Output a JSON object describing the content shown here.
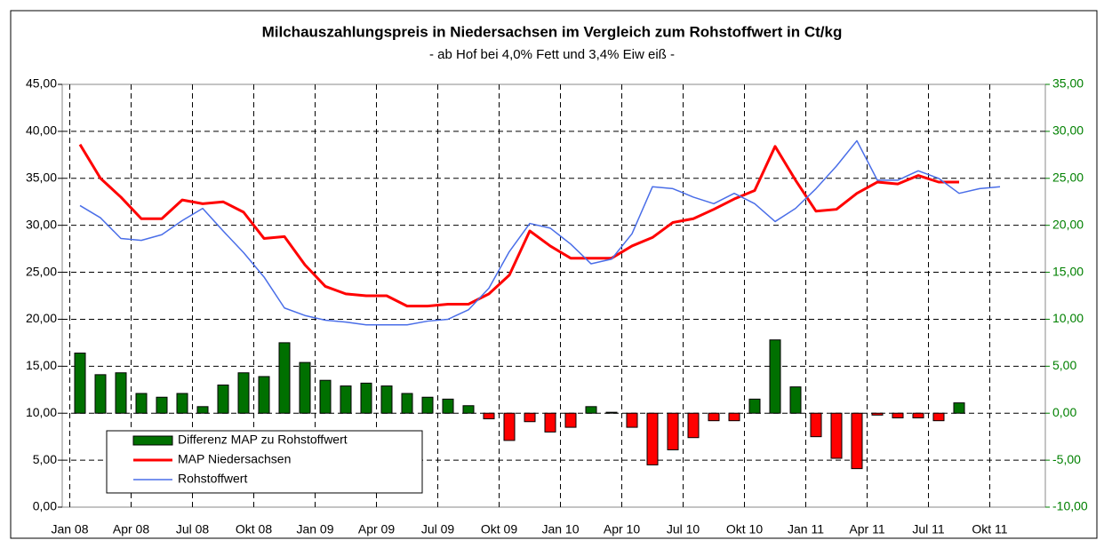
{
  "chart_data": {
    "type": "bar-line",
    "title": "Milchauszahlungspreis in Niedersachsen im Vergleich zum Rohstoffwert in Ct/kg",
    "subtitle": "- ab Hof bei 4,0% Fett und 3,4% Eiw eiß -",
    "categories": [
      "Jan 08",
      null,
      null,
      "Apr 08",
      null,
      null,
      "Jul 08",
      null,
      null,
      "Okt 08",
      null,
      null,
      "Jan 09",
      null,
      null,
      "Apr 09",
      null,
      null,
      "Jul 09",
      null,
      null,
      "Okt 09",
      null,
      null,
      "Jan 10",
      null,
      null,
      "Apr 10",
      null,
      null,
      "Jul 10",
      null,
      null,
      "Okt 10",
      null,
      null,
      "Jan 11",
      null,
      null,
      "Apr 11",
      null,
      null,
      "Jul 11",
      null,
      null,
      "Okt 11",
      null,
      null
    ],
    "series": [
      {
        "name": "Differenz MAP zu Rohstoffwert",
        "type": "bar",
        "axis": "y2",
        "color": "#007000",
        "negative_color": "#ff0000",
        "values": [
          6.4,
          4.1,
          4.3,
          2.1,
          1.7,
          2.1,
          0.7,
          3.0,
          4.3,
          3.9,
          7.5,
          5.4,
          3.5,
          2.9,
          3.2,
          2.9,
          2.1,
          1.7,
          1.5,
          0.8,
          -0.6,
          -2.9,
          -0.9,
          -2.0,
          -1.5,
          0.7,
          0.1,
          -1.5,
          -5.5,
          -3.9,
          -2.6,
          -0.8,
          -0.8,
          1.5,
          7.8,
          2.8,
          -2.5,
          -4.8,
          -5.9,
          -0.2,
          -0.5,
          -0.5,
          -0.8,
          1.1,
          null,
          null,
          null,
          null
        ]
      },
      {
        "name": "MAP Niedersachsen",
        "type": "line",
        "axis": "y",
        "color": "#ff0000",
        "width": 3,
        "values": [
          38.6,
          35.0,
          33.0,
          30.7,
          30.7,
          32.7,
          32.3,
          32.5,
          31.4,
          28.6,
          28.8,
          25.8,
          23.5,
          22.7,
          22.5,
          22.5,
          21.4,
          21.4,
          21.6,
          21.6,
          22.7,
          24.7,
          29.4,
          27.8,
          26.5,
          26.5,
          26.5,
          27.8,
          28.7,
          30.3,
          30.7,
          31.7,
          32.8,
          33.7,
          38.4,
          34.8,
          31.5,
          31.7,
          33.4,
          34.6,
          34.4,
          35.3,
          34.6,
          34.6,
          null,
          null,
          null,
          null
        ]
      },
      {
        "name": "Rohstoffwert",
        "type": "line",
        "axis": "y2",
        "color": "#4a6ee8",
        "width": 1.5,
        "values": [
          22.1,
          20.8,
          18.6,
          18.4,
          19.0,
          20.5,
          21.8,
          19.4,
          17.1,
          14.5,
          11.2,
          10.4,
          9.9,
          9.7,
          9.4,
          9.4,
          9.4,
          9.8,
          10.0,
          11.0,
          13.3,
          17.2,
          20.2,
          19.7,
          18.0,
          15.9,
          16.4,
          19.1,
          24.1,
          23.9,
          23.0,
          22.3,
          23.4,
          22.3,
          20.4,
          21.8,
          23.9,
          26.3,
          29.0,
          24.8,
          24.8,
          25.8,
          25.0,
          23.4,
          23.9,
          24.1,
          null,
          null
        ]
      }
    ],
    "ylim": [
      0,
      45
    ],
    "yticks": [
      {
        "value": 0,
        "label": "0,00"
      },
      {
        "value": 5,
        "label": "5,00"
      },
      {
        "value": 10,
        "label": "10,00"
      },
      {
        "value": 15,
        "label": "15,00"
      },
      {
        "value": 20,
        "label": "20,00"
      },
      {
        "value": 25,
        "label": "25,00"
      },
      {
        "value": 30,
        "label": "30,00"
      },
      {
        "value": 35,
        "label": "35,00"
      },
      {
        "value": 40,
        "label": "40,00"
      },
      {
        "value": 45,
        "label": "45,00"
      }
    ],
    "y2lim": [
      -10,
      35
    ],
    "y2ticks": [
      {
        "value": -10,
        "label": "-10,00"
      },
      {
        "value": -5,
        "label": "-5,00"
      },
      {
        "value": 0,
        "label": "0,00"
      },
      {
        "value": 5,
        "label": "5,00"
      },
      {
        "value": 10,
        "label": "10,00"
      },
      {
        "value": 15,
        "label": "15,00"
      },
      {
        "value": 20,
        "label": "20,00"
      },
      {
        "value": 25,
        "label": "25,00"
      },
      {
        "value": 30,
        "label": "30,00"
      },
      {
        "value": 35,
        "label": "35,00"
      }
    ],
    "y2_color": "#008000",
    "grid": true,
    "legend": "lower left"
  }
}
